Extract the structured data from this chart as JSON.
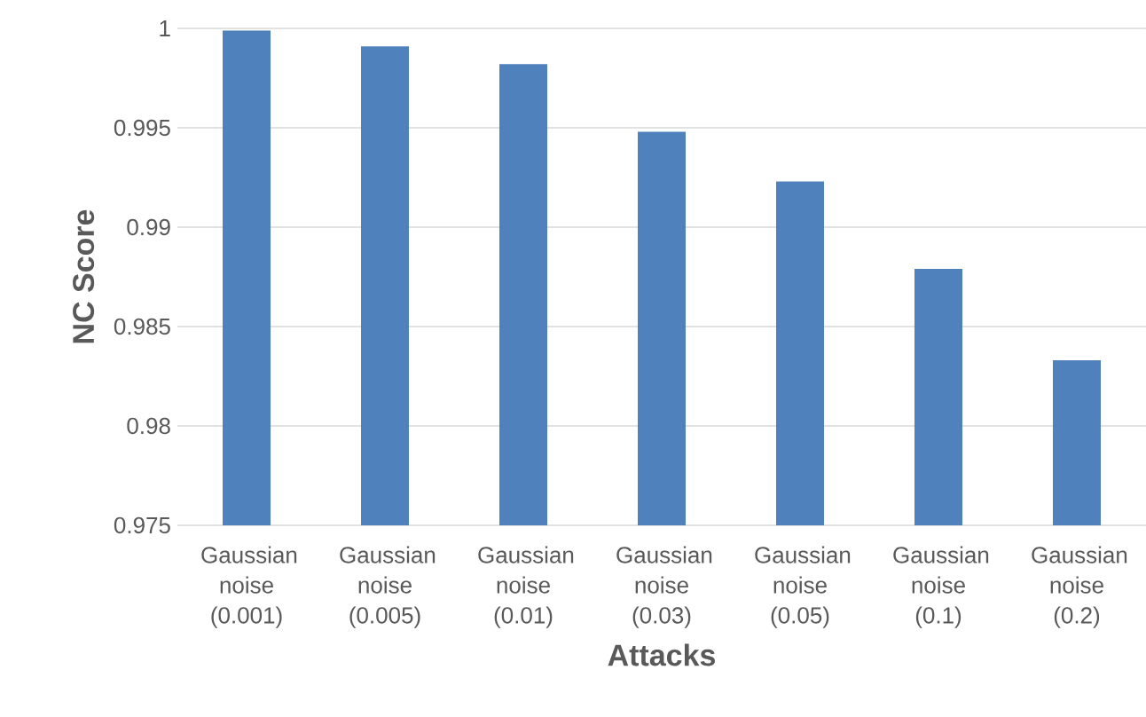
{
  "chart_data": {
    "type": "bar",
    "xlabel": "Attacks",
    "ylabel": "NC Score",
    "categories": [
      "Gaussian noise (0.001)",
      "Gaussian noise (0.005)",
      "Gaussian noise (0.01)",
      "Gaussian noise (0.03)",
      "Gaussian noise (0.05)",
      "Gaussian noise (0.1)",
      "Gaussian noise (0.2)"
    ],
    "values": [
      0.9999,
      0.9991,
      0.9982,
      0.9948,
      0.9923,
      0.9879,
      0.9833
    ],
    "color": "#4f81bd",
    "ylim": [
      0.975,
      1
    ],
    "yticks": [
      0.975,
      0.98,
      0.985,
      0.99,
      0.995,
      1
    ],
    "grid": "y"
  }
}
